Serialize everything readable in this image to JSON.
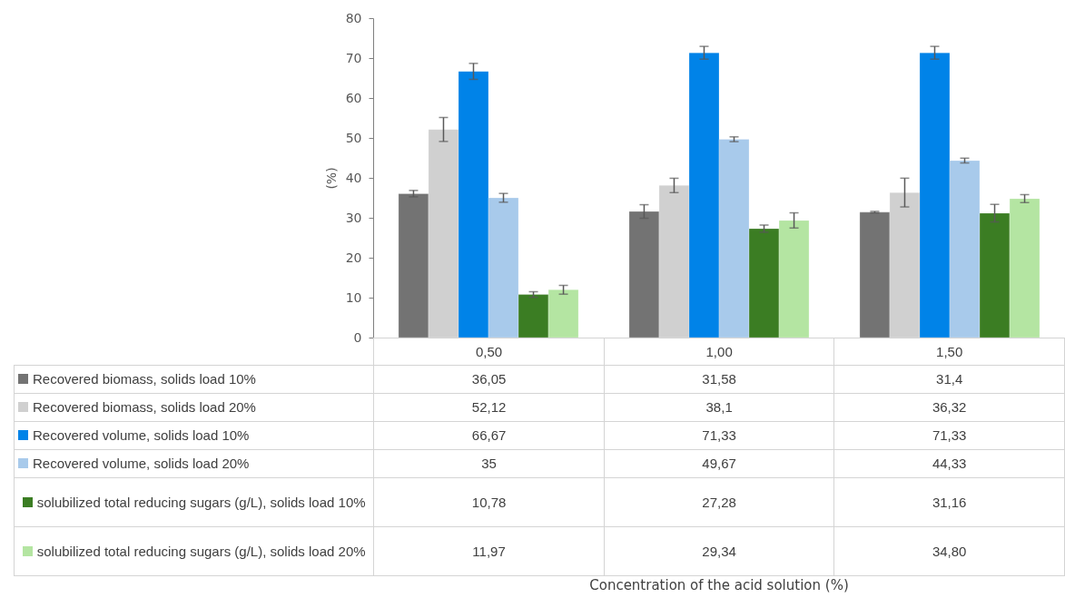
{
  "chart_data": {
    "type": "bar",
    "annotations": [
      "Concentration of the acid solution (%)"
    ],
    "ylabel": "(%)",
    "categories": [
      "0,50",
      "1,00",
      "1,50"
    ],
    "ylim": [
      0,
      80
    ],
    "yticks": [
      0,
      10,
      20,
      30,
      40,
      50,
      60,
      70,
      80
    ],
    "grid": false,
    "legend": "bottom",
    "series": [
      {
        "name": "Recovered biomass, solids load 10%",
        "color": "#737373",
        "values": [
          36.05,
          31.58,
          31.4
        ],
        "value_labels": [
          "36,05",
          "31,58",
          "31,4"
        ],
        "errors": [
          0.8,
          1.7,
          0.2
        ]
      },
      {
        "name": "Recovered biomass, solids load 20%",
        "color": "#d0d0d0",
        "values": [
          52.12,
          38.1,
          36.32
        ],
        "value_labels": [
          "52,12",
          "38,1",
          "36,32"
        ],
        "errors": [
          3.0,
          1.8,
          3.6
        ]
      },
      {
        "name": "Recovered volume, solids load 10%",
        "color": "#0083e8",
        "values": [
          66.67,
          71.33,
          71.33
        ],
        "value_labels": [
          "66,67",
          "71,33",
          "71,33"
        ],
        "errors": [
          2.0,
          1.6,
          1.6
        ]
      },
      {
        "name": "Recovered volume, solids load 20%",
        "color": "#a8caeb",
        "values": [
          35,
          49.67,
          44.33
        ],
        "value_labels": [
          "35",
          "49,67",
          "44,33"
        ],
        "errors": [
          1.1,
          0.6,
          0.6
        ]
      },
      {
        "name": "solubilized total reducing sugars (g/L), solids load 10%",
        "color": "#3b7d23",
        "values": [
          10.78,
          27.28,
          31.16
        ],
        "value_labels": [
          "10,78",
          "27,28",
          "31,16"
        ],
        "errors": [
          0.7,
          0.9,
          2.2
        ]
      },
      {
        "name": "solubilized total reducing sugars (g/L), solids load 20%",
        "color": "#b4e5a2",
        "values": [
          11.97,
          29.34,
          34.8
        ],
        "value_labels": [
          "11,97",
          "29,34",
          "34,80"
        ],
        "errors": [
          1.1,
          1.9,
          1.0
        ]
      }
    ]
  }
}
